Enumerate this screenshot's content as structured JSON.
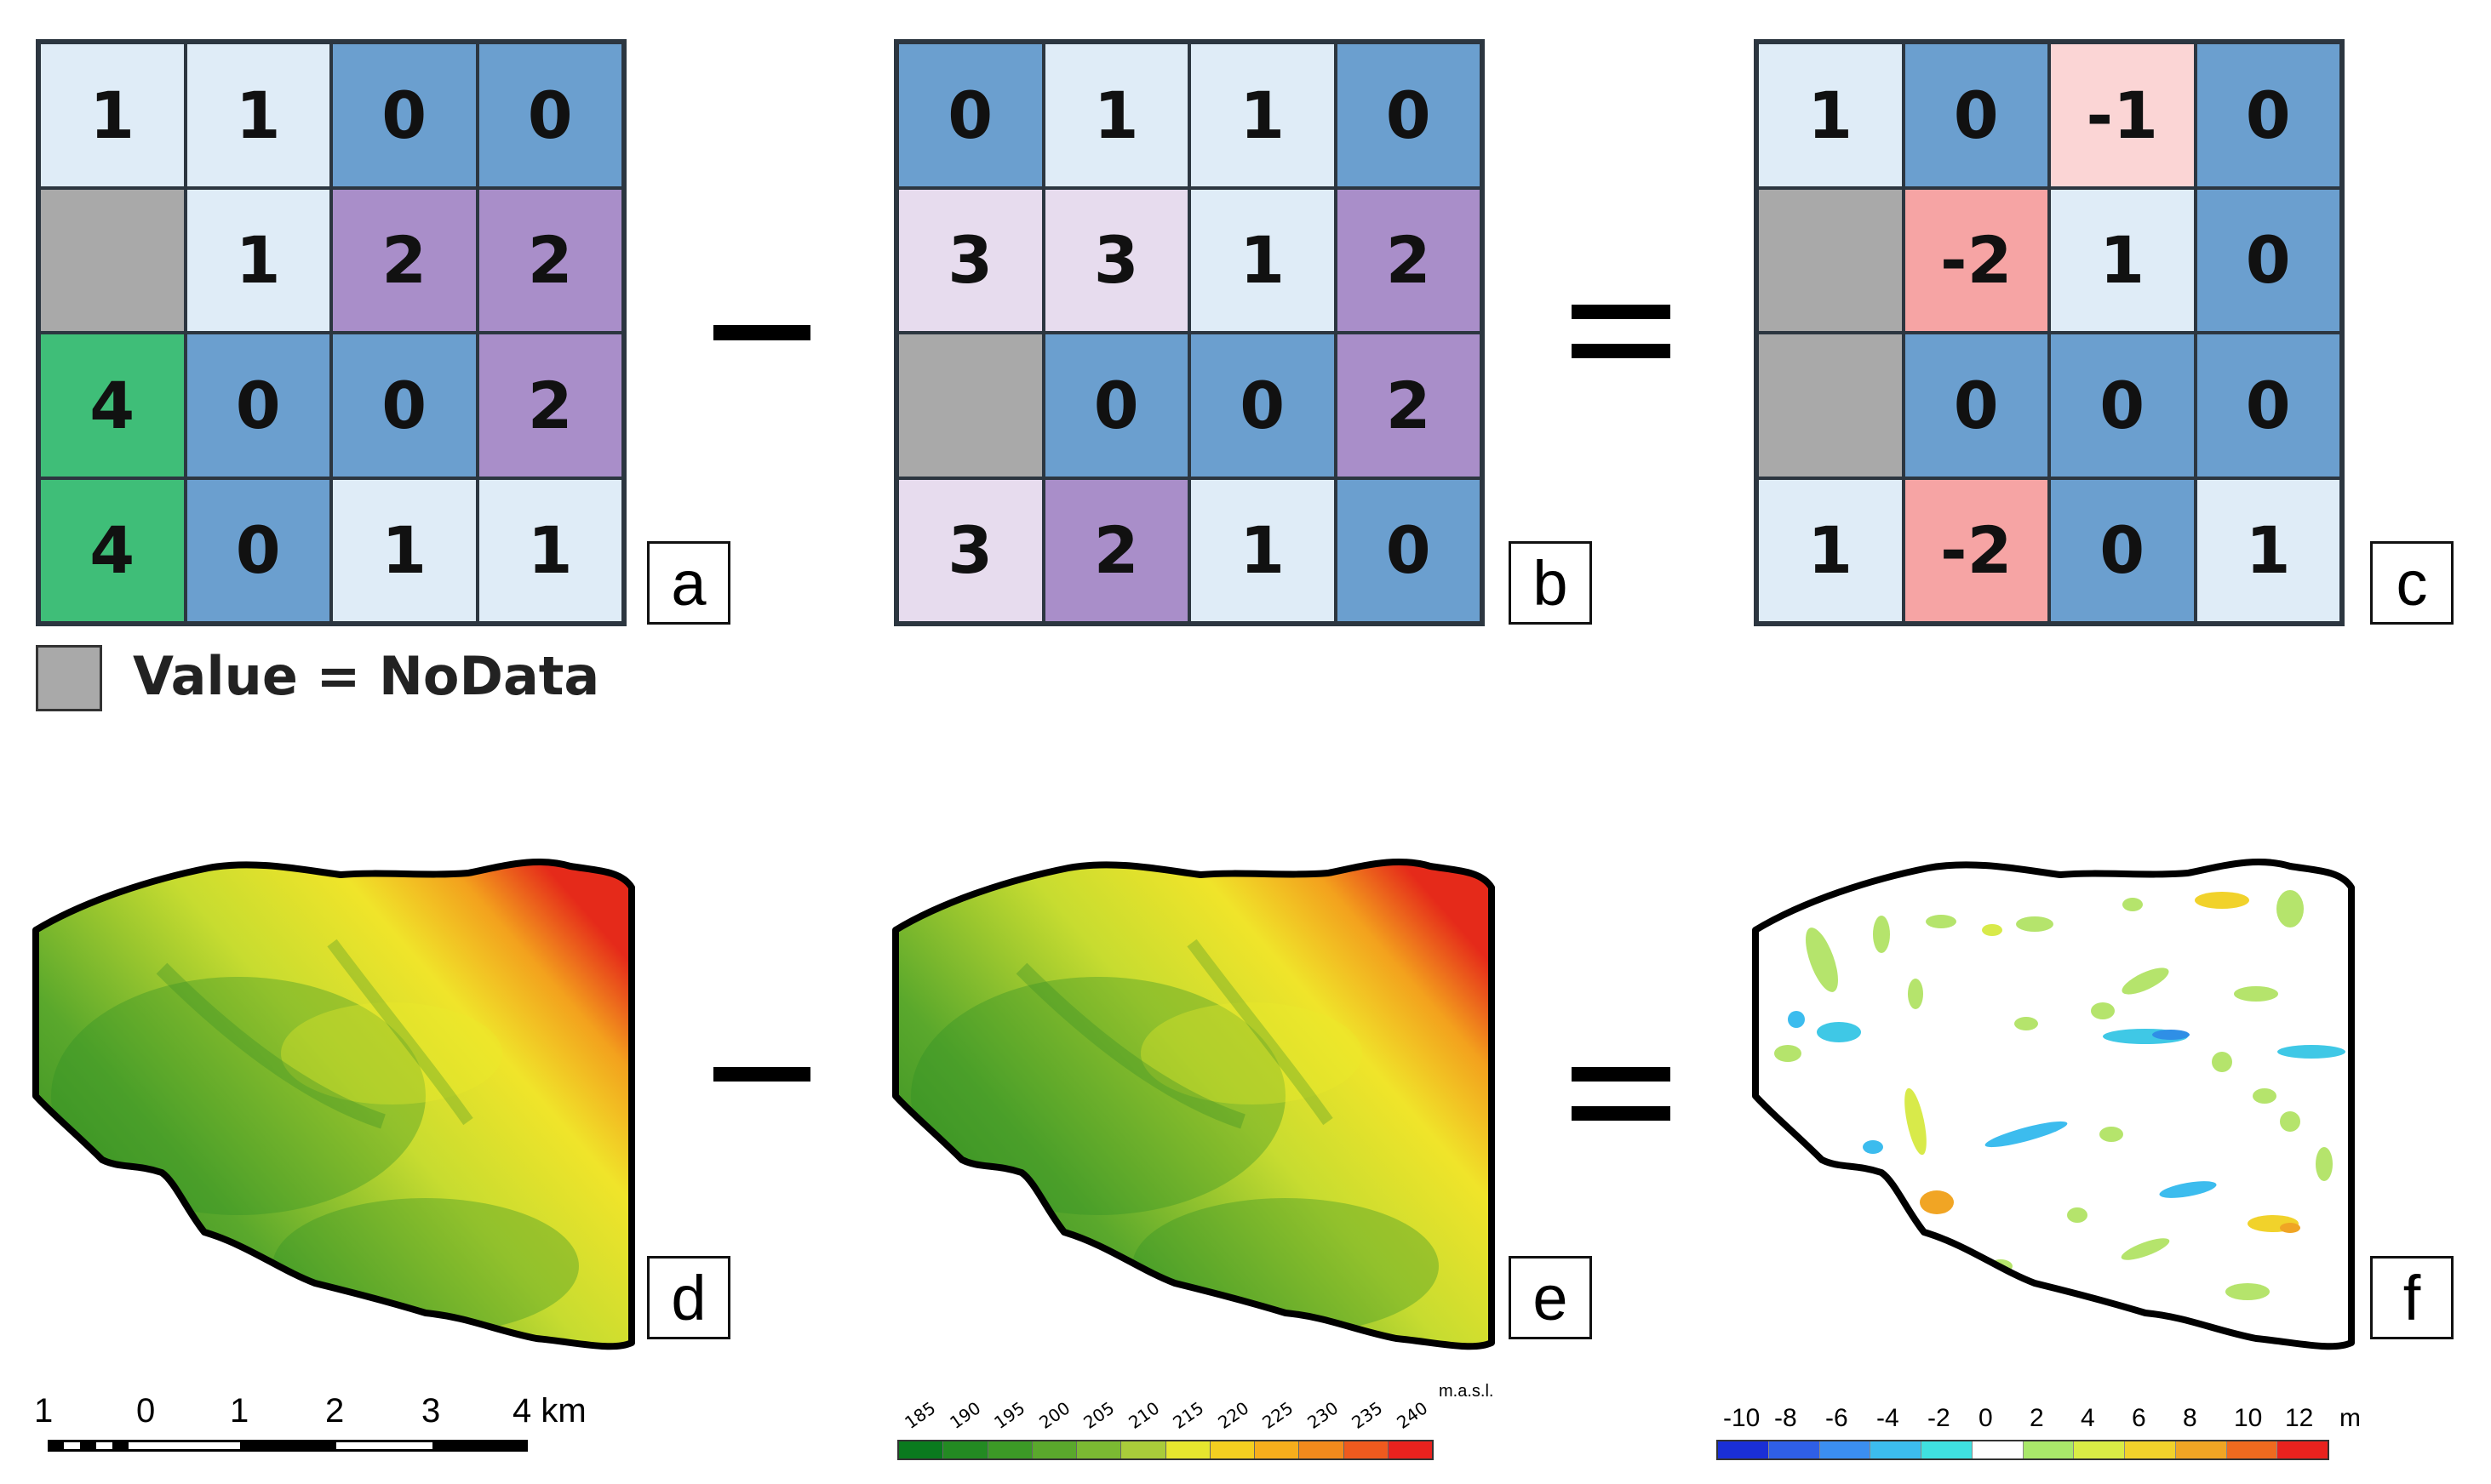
{
  "panels": {
    "a": {
      "label": "a",
      "cells": [
        [
          "1",
          "1",
          "0",
          "0"
        ],
        [
          "",
          "1",
          "2",
          "2"
        ],
        [
          "4",
          "0",
          "0",
          "2"
        ],
        [
          "4",
          "0",
          "1",
          "1"
        ]
      ]
    },
    "b": {
      "label": "b",
      "cells": [
        [
          "0",
          "1",
          "1",
          "0"
        ],
        [
          "3",
          "3",
          "1",
          "2"
        ],
        [
          "",
          "0",
          "0",
          "2"
        ],
        [
          "3",
          "2",
          "1",
          "0"
        ]
      ]
    },
    "c": {
      "label": "c",
      "cells": [
        [
          "1",
          "0",
          "-1",
          "0"
        ],
        [
          "",
          "-2",
          "1",
          "0"
        ],
        [
          "",
          "0",
          "0",
          "0"
        ],
        [
          "1",
          "-2",
          "0",
          "1"
        ]
      ]
    },
    "d": {
      "label": "d"
    },
    "e": {
      "label": "e"
    },
    "f": {
      "label": "f"
    }
  },
  "value_colors": {
    "nodata": "#a9a9a9",
    "0": "#6b9fcf",
    "1": "#dfecf7",
    "2": "#a98ec9",
    "3": "#e7dcee",
    "4": "#3fbe78",
    "-1": "#fbd5d5",
    "-2": "#f6a4a4"
  },
  "legend_nodata": {
    "text": "Value = NoData"
  },
  "operators": {
    "minus": "−",
    "equals": "="
  },
  "scale_bar": {
    "labels": [
      "1",
      "0",
      "1",
      "2",
      "3",
      "4 km"
    ]
  },
  "elevation_legend": {
    "ticks": [
      "185",
      "190",
      "195",
      "200",
      "205",
      "210",
      "215",
      "220",
      "225",
      "230",
      "235",
      "240"
    ],
    "unit": "m.a.s.l.",
    "colors": [
      "#0a7a1e",
      "#238a22",
      "#3c9a26",
      "#5aa82c",
      "#7bb932",
      "#a9cc3a",
      "#e6e62e",
      "#f4cf20",
      "#f6ae1c",
      "#f38a1c",
      "#ef5a1e",
      "#e9221e"
    ]
  },
  "difference_legend": {
    "ticks": [
      "-10",
      "-8",
      "-6",
      "-4",
      "-2",
      "0",
      "2",
      "4",
      "6",
      "8",
      "10",
      "12"
    ],
    "unit": "m",
    "colors": [
      "#1a2fd6",
      "#2f5fe6",
      "#3b8ef0",
      "#3cbcee",
      "#3fe0e0",
      "#ffffff",
      "#a9e86a",
      "#d9ec45",
      "#f1d22b",
      "#f0a524",
      "#ef6a1f",
      "#e9221e"
    ]
  },
  "terrain_colors": {
    "low": "#2e8f26",
    "mid": "#dfe628",
    "high": "#ea2a1a"
  }
}
